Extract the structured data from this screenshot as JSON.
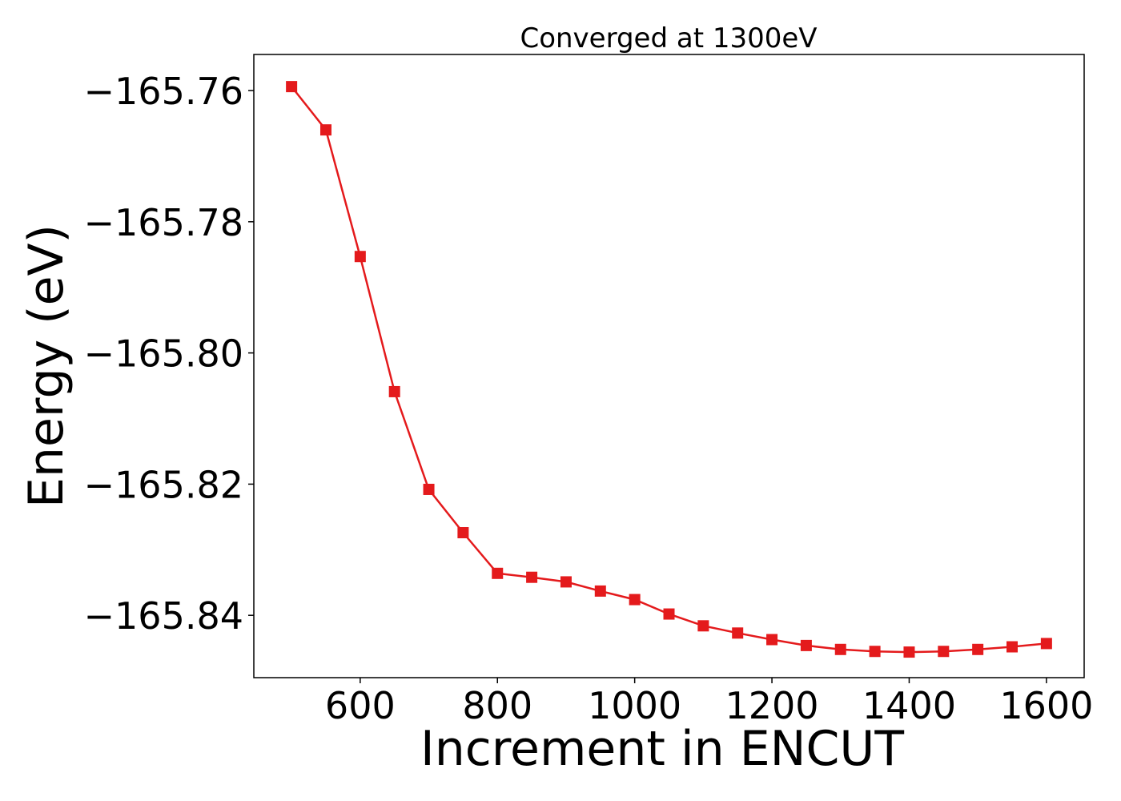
{
  "chart_data": {
    "type": "line",
    "title": "Converged at 1300eV",
    "xlabel": "Increment in ENCUT",
    "ylabel": "Energy (eV)",
    "xlim": [
      445,
      1655
    ],
    "ylim": [
      -165.8495,
      -165.7545
    ],
    "x_ticks": [
      600,
      800,
      1000,
      1200,
      1400,
      1600
    ],
    "x_tick_labels": [
      "600",
      "800",
      "1000",
      "1200",
      "1400",
      "1600"
    ],
    "y_ticks": [
      -165.76,
      -165.78,
      -165.8,
      -165.82,
      -165.84
    ],
    "y_tick_labels": [
      "−165.76",
      "−165.78",
      "−165.80",
      "−165.82",
      "−165.84"
    ],
    "grid": false,
    "legend": "none",
    "color": "#e41a1c",
    "marker": "square",
    "x": [
      500,
      550,
      600,
      650,
      700,
      750,
      800,
      850,
      900,
      950,
      1000,
      1050,
      1100,
      1150,
      1200,
      1250,
      1300,
      1350,
      1400,
      1450,
      1500,
      1550,
      1600
    ],
    "y": [
      -165.7594,
      -165.766,
      -165.7853,
      -165.8059,
      -165.8208,
      -165.8274,
      -165.8336,
      -165.8342,
      -165.8349,
      -165.8363,
      -165.8376,
      -165.8398,
      -165.8416,
      -165.8427,
      -165.8437,
      -165.8446,
      -165.8452,
      -165.8455,
      -165.8456,
      -165.8455,
      -165.8452,
      -165.8448,
      -165.8443
    ]
  }
}
